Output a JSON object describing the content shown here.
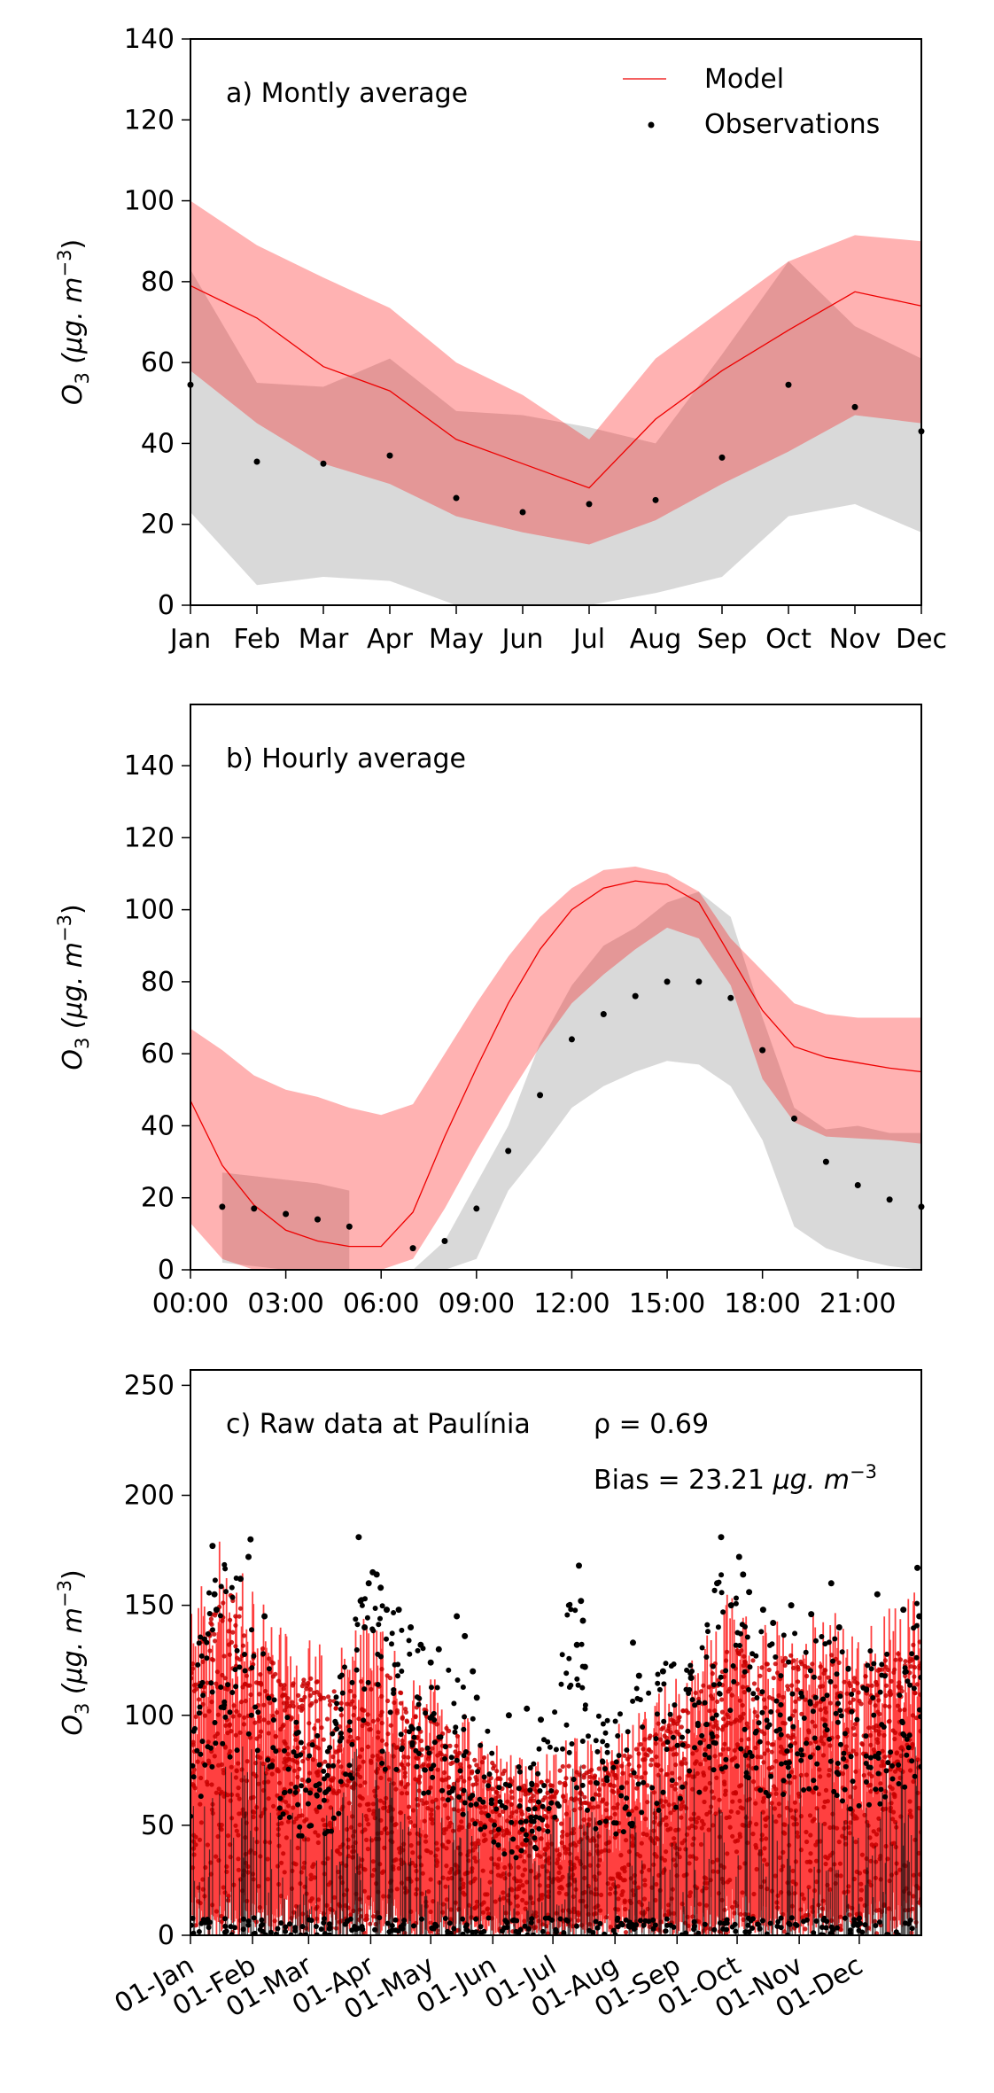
{
  "chart_data": [
    {
      "type": "line",
      "panel_label": "a) Montly average",
      "ylabel": "O3 (µg.m-3)",
      "ylabel_main": "O",
      "ylabel_sub": "3",
      "ylabel_unit": " (μg. m",
      "ylabel_exp": "−3",
      "ylabel_close": ")",
      "ylim": [
        0,
        140
      ],
      "yticks": [
        0,
        20,
        40,
        60,
        80,
        100,
        120,
        140
      ],
      "categories": [
        "Jan",
        "Feb",
        "Mar",
        "Apr",
        "May",
        "Jun",
        "Jul",
        "Aug",
        "Sep",
        "Oct",
        "Nov",
        "Dec"
      ],
      "legend": {
        "position": "top-right",
        "model": "Model",
        "observations": "Observations"
      },
      "colors": {
        "model": "#ee0000",
        "model_band": "#ff0000",
        "obs_band": "#aaaaaa",
        "obs": "#000000"
      },
      "series": [
        {
          "name": "Model",
          "values": [
            79,
            71,
            59,
            53,
            41,
            35,
            29,
            46,
            58,
            68,
            77.5,
            74
          ]
        },
        {
          "name": "Observations",
          "values": [
            54.5,
            35.5,
            35,
            37,
            26.5,
            23,
            25,
            26,
            36.5,
            54.5,
            49,
            43
          ]
        }
      ],
      "model_band": {
        "upper": [
          100,
          89,
          81,
          73.5,
          60,
          52,
          41,
          61,
          73,
          85,
          91.5,
          90
        ],
        "lower": [
          58,
          45,
          35,
          30,
          22,
          18,
          15,
          21,
          30,
          38,
          47,
          45
        ]
      },
      "obs_band": {
        "upper": [
          83,
          55,
          54,
          61,
          48,
          47,
          44,
          40,
          62,
          85,
          69,
          61
        ],
        "lower": [
          23,
          5,
          7,
          6,
          0,
          0,
          0,
          3,
          7,
          22,
          25,
          18
        ]
      }
    },
    {
      "type": "line",
      "panel_label": "b) Hourly average",
      "ylabel": "O3 (µg.m-3)",
      "ylabel_main": "O",
      "ylabel_sub": "3",
      "ylabel_unit": " (μg. m",
      "ylabel_exp": "−3",
      "ylabel_close": ")",
      "ylim": [
        0,
        157
      ],
      "yticks": [
        0,
        20,
        40,
        60,
        80,
        100,
        120,
        140
      ],
      "x_ticklabels": [
        "00:00",
        "03:00",
        "06:00",
        "09:00",
        "12:00",
        "15:00",
        "18:00",
        "21:00"
      ],
      "x_tick_hours": [
        0,
        3,
        6,
        9,
        12,
        15,
        18,
        21
      ],
      "x": [
        0,
        1,
        2,
        3,
        4,
        5,
        6,
        7,
        8,
        9,
        10,
        11,
        12,
        13,
        14,
        15,
        16,
        17,
        18,
        19,
        20,
        21,
        22,
        23
      ],
      "colors": {
        "model": "#ee0000",
        "model_band": "#ff0000",
        "obs_band": "#aaaaaa",
        "obs": "#000000"
      },
      "series": [
        {
          "name": "Model",
          "values": [
            47,
            29,
            18,
            11,
            8,
            6.5,
            6.5,
            16,
            37,
            56,
            74,
            89,
            100,
            106,
            108,
            107,
            102,
            87,
            72,
            62,
            59,
            57.5,
            56,
            55
          ]
        },
        {
          "name": "Observations",
          "values": [
            null,
            17.5,
            17,
            15.5,
            14,
            12,
            null,
            6,
            8,
            17,
            33,
            48.5,
            64,
            71,
            76,
            80,
            80,
            75.5,
            61,
            42,
            30,
            23.5,
            19.5,
            17.5
          ]
        }
      ],
      "model_band": {
        "upper": [
          67,
          61,
          54,
          50,
          48,
          45,
          43,
          46,
          60,
          74,
          87,
          98,
          106,
          111,
          112,
          110,
          105,
          92,
          83,
          74,
          71,
          70,
          70,
          70
        ],
        "lower": [
          13,
          3,
          0,
          0,
          0,
          0,
          0,
          3,
          17,
          33,
          48,
          62,
          74,
          82,
          89,
          95,
          92,
          79,
          53,
          41,
          37,
          36.5,
          36,
          35
        ]
      },
      "obs_band": [
        {
          "x": [
            1,
            2,
            3,
            4,
            5
          ],
          "upper": [
            27,
            26,
            25,
            24,
            22
          ],
          "lower": [
            2,
            1,
            0,
            0,
            0
          ]
        },
        {
          "x": [
            7,
            8,
            9,
            10,
            11,
            12,
            13,
            14,
            15,
            16,
            17,
            18,
            19,
            20,
            21,
            22,
            23
          ],
          "upper": [
            0,
            8,
            24,
            40,
            63,
            79,
            90,
            95,
            102,
            105,
            98,
            70,
            45,
            39,
            40,
            38,
            38
          ],
          "lower": [
            0,
            0,
            3,
            22,
            33,
            45,
            51,
            55,
            58,
            57,
            51,
            36,
            12,
            6,
            3,
            1,
            0
          ]
        }
      ]
    },
    {
      "type": "line",
      "panel_label": "c) Raw data at Paulínia",
      "rho_text": "ρ = 0.69",
      "bias_prefix": "Bias = 23.21 ",
      "bias_unit": "μg. m",
      "bias_exp": "−3",
      "ylabel": "O3 (µg.m-3)",
      "ylabel_main": "O",
      "ylabel_sub": "3",
      "ylabel_unit": " (μg. m",
      "ylabel_exp": "−3",
      "ylabel_close": ")",
      "ylim": [
        0,
        257
      ],
      "yticks": [
        0,
        50,
        100,
        150,
        200,
        250
      ],
      "x_range_days": [
        0,
        365
      ],
      "x_ticklabels": [
        "01-Jan",
        "01-Feb",
        "01-Mar",
        "01-Apr",
        "01-May",
        "01-Jun",
        "01-Jul",
        "01-Aug",
        "01-Sep",
        "01-Oct",
        "01-Nov",
        "01-Dec"
      ],
      "x_tick_days": [
        0,
        31,
        59,
        90,
        120,
        151,
        181,
        212,
        243,
        273,
        304,
        334
      ],
      "colors": {
        "model": "#ff0000",
        "model_points": "#c80000",
        "obs": "#000000",
        "obs_line": "#111111"
      },
      "envelope_model": {
        "day": [
          0,
          10,
          20,
          30,
          40,
          50,
          60,
          70,
          80,
          90,
          100,
          110,
          120,
          130,
          140,
          150,
          160,
          170,
          180,
          190,
          200,
          210,
          220,
          230,
          240,
          250,
          260,
          270,
          280,
          290,
          300,
          310,
          320,
          330,
          340,
          350,
          365
        ],
        "peak": [
          145,
          175,
          185,
          165,
          150,
          135,
          140,
          130,
          135,
          150,
          140,
          125,
          120,
          110,
          100,
          95,
          85,
          80,
          85,
          95,
          90,
          95,
          100,
          110,
          120,
          130,
          145,
          160,
          150,
          145,
          150,
          145,
          150,
          140,
          145,
          150,
          160
        ]
      },
      "envelope_obs": {
        "day": [
          0,
          10,
          20,
          30,
          40,
          50,
          60,
          70,
          80,
          90,
          100,
          110,
          120,
          130,
          140,
          150,
          160,
          170,
          180,
          190,
          200,
          210,
          220,
          230,
          240,
          250,
          260,
          270,
          280,
          290,
          300,
          310,
          320,
          330,
          340,
          350,
          365
        ],
        "peak": [
          110,
          165,
          170,
          150,
          135,
          100,
          90,
          95,
          150,
          165,
          150,
          135,
          130,
          120,
          110,
          90,
          75,
          80,
          95,
          160,
          110,
          95,
          110,
          120,
          130,
          125,
          155,
          175,
          150,
          135,
          140,
          135,
          140,
          120,
          130,
          130,
          165
        ]
      },
      "obs_highlights": [
        {
          "day": 11,
          "value": 177
        },
        {
          "day": 12,
          "value": 155
        },
        {
          "day": 13,
          "value": 148
        },
        {
          "day": 25,
          "value": 162
        },
        {
          "day": 30,
          "value": 180
        },
        {
          "day": 29,
          "value": 172
        },
        {
          "day": 37,
          "value": 145
        },
        {
          "day": 84,
          "value": 181
        },
        {
          "day": 85,
          "value": 152
        },
        {
          "day": 89,
          "value": 160
        },
        {
          "day": 91,
          "value": 165
        },
        {
          "day": 93,
          "value": 164
        },
        {
          "day": 95,
          "value": 158
        },
        {
          "day": 98,
          "value": 148
        },
        {
          "day": 87,
          "value": 140
        },
        {
          "day": 104,
          "value": 148
        },
        {
          "day": 110,
          "value": 140
        },
        {
          "day": 115,
          "value": 132
        },
        {
          "day": 120,
          "value": 124
        },
        {
          "day": 124,
          "value": 130
        },
        {
          "day": 133,
          "value": 145
        },
        {
          "day": 137,
          "value": 136
        },
        {
          "day": 141,
          "value": 120
        },
        {
          "day": 143,
          "value": 108
        },
        {
          "day": 159,
          "value": 100
        },
        {
          "day": 168,
          "value": 103
        },
        {
          "day": 175,
          "value": 98
        },
        {
          "day": 194,
          "value": 168
        },
        {
          "day": 195,
          "value": 152
        },
        {
          "day": 196,
          "value": 143
        },
        {
          "day": 193,
          "value": 132
        },
        {
          "day": 197,
          "value": 122
        },
        {
          "day": 221,
          "value": 133
        },
        {
          "day": 224,
          "value": 118
        },
        {
          "day": 236,
          "value": 120
        },
        {
          "day": 250,
          "value": 117
        },
        {
          "day": 265,
          "value": 181
        },
        {
          "day": 263,
          "value": 160
        },
        {
          "day": 274,
          "value": 172
        },
        {
          "day": 276,
          "value": 164
        },
        {
          "day": 279,
          "value": 156
        },
        {
          "day": 270,
          "value": 150
        },
        {
          "day": 286,
          "value": 148
        },
        {
          "day": 291,
          "value": 142
        },
        {
          "day": 300,
          "value": 150
        },
        {
          "day": 310,
          "value": 146
        },
        {
          "day": 320,
          "value": 160
        },
        {
          "day": 324,
          "value": 140
        },
        {
          "day": 343,
          "value": 155
        },
        {
          "day": 356,
          "value": 148
        },
        {
          "day": 363,
          "value": 167
        },
        {
          "day": 364,
          "value": 145
        }
      ]
    }
  ]
}
